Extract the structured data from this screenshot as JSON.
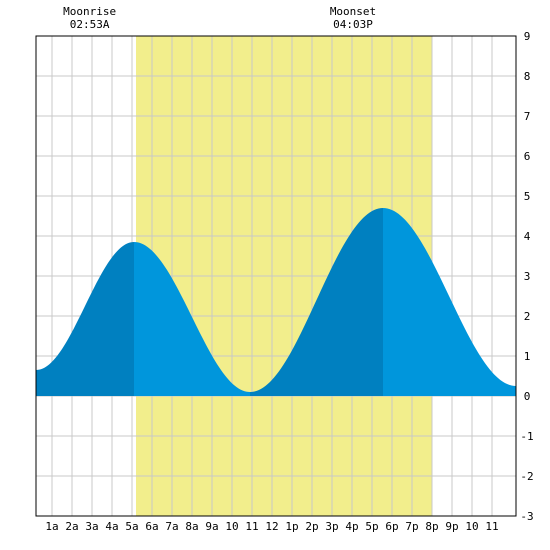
{
  "chart_data": {
    "type": "area",
    "title": "",
    "xlabel": "",
    "ylabel": "",
    "x_tick_labels": [
      "1a",
      "2a",
      "3a",
      "4a",
      "5a",
      "6a",
      "7a",
      "8a",
      "9a",
      "10",
      "11",
      "12",
      "1p",
      "2p",
      "3p",
      "4p",
      "5p",
      "6p",
      "7p",
      "8p",
      "9p",
      "10",
      "11"
    ],
    "x_range_hours": [
      0.2,
      24.2
    ],
    "ylim": [
      -3,
      9
    ],
    "y_ticks": [
      -3,
      -2,
      -1,
      0,
      1,
      2,
      3,
      4,
      5,
      6,
      7,
      8,
      9
    ],
    "grid": true,
    "daylight_hours": [
      5.2,
      20.0
    ],
    "annotations": [
      {
        "label": "Moonrise",
        "time": "02:53A",
        "hour": 2.88
      },
      {
        "label": "Moonset",
        "time": "04:03P",
        "hour": 16.05
      }
    ],
    "tide_extrema": [
      {
        "hour": 0.2,
        "value": 0.65
      },
      {
        "hour": 5.1,
        "value": 3.85
      },
      {
        "hour": 10.9,
        "value": 0.1
      },
      {
        "hour": 17.55,
        "value": 4.7
      },
      {
        "hour": 24.2,
        "value": 0.25
      }
    ],
    "series": [
      {
        "values": []
      }
    ],
    "colors": {
      "daylight": "#f2ee8c",
      "tide_rising": "#0080c0",
      "tide_falling": "#0096dc",
      "grid": "#c8c8c8",
      "axis": "#000000"
    }
  }
}
